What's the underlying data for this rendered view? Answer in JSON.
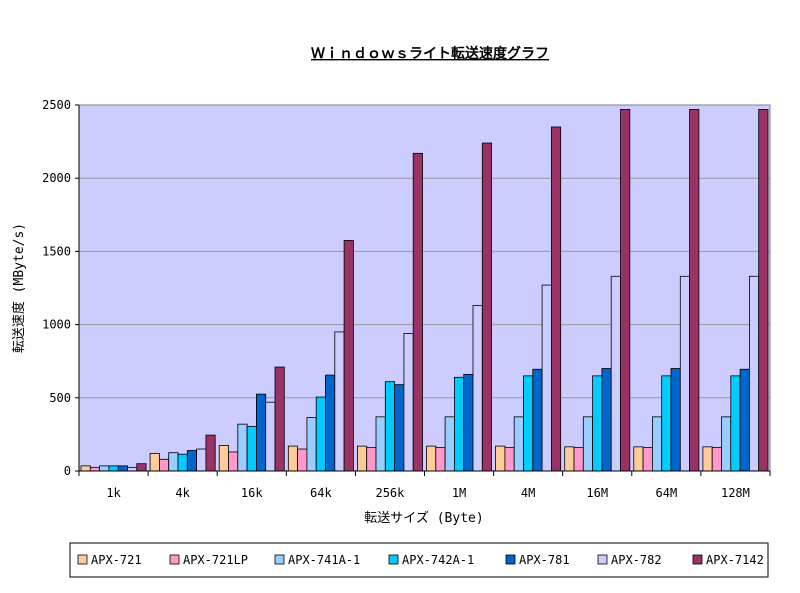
{
  "chart_data": {
    "type": "bar",
    "title": "Ｗｉｎｄｏｗｓライト転送速度グラフ",
    "xlabel": "転送サイズ (Byte)",
    "ylabel": "転送速度 (MByte/s)",
    "ylim": [
      0,
      2500
    ],
    "yticks": [
      "0",
      "500",
      "1000",
      "1500",
      "2000",
      "2500"
    ],
    "grid": true,
    "legend_position": "bottom",
    "plot_background": "#ccccff",
    "categories": [
      "1k",
      "4k",
      "16k",
      "64k",
      "256k",
      "1M",
      "4M",
      "16M",
      "64M",
      "128M"
    ],
    "series": [
      {
        "name": "APX-721",
        "color": "#ffcc99",
        "values": [
          35,
          120,
          175,
          170,
          170,
          170,
          170,
          165,
          165,
          165
        ]
      },
      {
        "name": "APX-721LP",
        "color": "#ff99cc",
        "values": [
          25,
          80,
          130,
          150,
          160,
          160,
          160,
          160,
          160,
          160
        ]
      },
      {
        "name": "APX-741A-1",
        "color": "#99ccff",
        "values": [
          35,
          125,
          320,
          365,
          370,
          370,
          370,
          370,
          370,
          370
        ]
      },
      {
        "name": "APX-742A-1",
        "color": "#00ccff",
        "values": [
          35,
          115,
          305,
          505,
          610,
          640,
          650,
          650,
          650,
          650
        ]
      },
      {
        "name": "APX-781",
        "color": "#0066cc",
        "values": [
          35,
          140,
          525,
          655,
          590,
          660,
          695,
          700,
          700,
          695
        ]
      },
      {
        "name": "APX-782",
        "color": "#ccccff",
        "values": [
          25,
          150,
          470,
          950,
          940,
          1130,
          1270,
          1330,
          1330,
          1330
        ]
      },
      {
        "name": "APX-7142",
        "color": "#993366",
        "values": [
          50,
          245,
          710,
          1575,
          2170,
          2240,
          2350,
          2470,
          2470,
          2470
        ]
      }
    ]
  }
}
